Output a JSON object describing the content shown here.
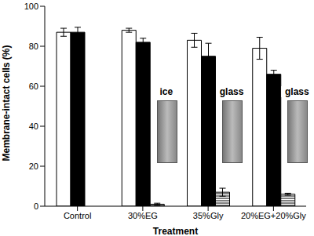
{
  "chart_data": {
    "type": "bar",
    "x_label": "Treatment",
    "y_label": "Membrane-intact cells (%)",
    "categories": [
      "Control",
      "30%EG",
      "35%Gly",
      "20%EG+20%Gly"
    ],
    "series": [
      {
        "color": "#ffffff",
        "values": [
          87,
          88,
          83,
          79
        ],
        "errors": [
          2,
          1,
          3.5,
          5.5
        ]
      },
      {
        "color": "#000000",
        "values": [
          87,
          82,
          75,
          66
        ],
        "errors": [
          2.5,
          2,
          6.5,
          2
        ]
      },
      {
        "color": "#000000",
        "line_style": "hatched",
        "values": [
          null,
          1,
          7,
          6
        ],
        "errors": [
          null,
          0.5,
          2,
          0.5
        ]
      }
    ],
    "ylim": [
      0,
      100
    ],
    "yticks": [
      0,
      20,
      40,
      60,
      80,
      100
    ],
    "grid": false,
    "annotations": [
      {
        "text": "ice",
        "category": "30%EG"
      },
      {
        "text": "glass",
        "category": "35%Gly"
      },
      {
        "text": "glass",
        "category": "20%EG+20%Gly"
      }
    ]
  }
}
